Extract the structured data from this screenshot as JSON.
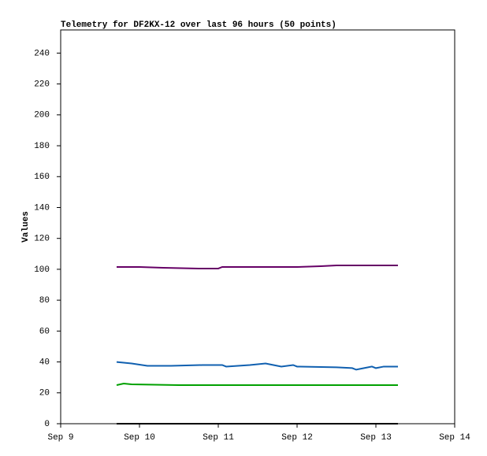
{
  "chart_data": {
    "type": "line",
    "title": "Telemetry for DF2KX-12 over last 96 hours (50 points)",
    "y_label": "Values",
    "xlim": [
      9,
      14
    ],
    "xticks": [
      {
        "value": 9,
        "label": "Sep 9"
      },
      {
        "value": 10,
        "label": "Sep 10"
      },
      {
        "value": 11,
        "label": "Sep 11"
      },
      {
        "value": 12,
        "label": "Sep 12"
      },
      {
        "value": 13,
        "label": "Sep 13"
      },
      {
        "value": 14,
        "label": "Sep 14"
      }
    ],
    "ylim": [
      0,
      255
    ],
    "yticks": [
      0,
      20,
      40,
      60,
      80,
      100,
      120,
      140,
      160,
      180,
      200,
      220,
      240
    ],
    "series": [
      {
        "color": "#660066",
        "x": [
          9.71,
          10.0,
          10.3,
          10.75,
          11.0,
          11.05,
          11.5,
          12.0,
          12.3,
          12.5,
          13.0,
          13.28
        ],
        "values": [
          101.5,
          101.5,
          101,
          100.5,
          100.5,
          101.5,
          101.5,
          101.5,
          102,
          102.5,
          102.5,
          102.5
        ]
      },
      {
        "color": "#1060b0",
        "x": [
          9.71,
          9.9,
          10.1,
          10.4,
          10.8,
          11.05,
          11.1,
          11.4,
          11.6,
          11.7,
          11.8,
          11.95,
          12.0,
          12.5,
          12.7,
          12.75,
          12.85,
          12.95,
          13.0,
          13.1,
          13.28
        ],
        "values": [
          40,
          39,
          37.5,
          37.5,
          38,
          38,
          37,
          38,
          39,
          38,
          37,
          38,
          37,
          36.5,
          36,
          35,
          36,
          37,
          36,
          37,
          37
        ]
      },
      {
        "color": "#00a000",
        "x": [
          9.71,
          9.8,
          9.9,
          10.5,
          11.5,
          12.5,
          13.28
        ],
        "values": [
          25,
          26,
          25.5,
          25,
          25,
          25,
          25
        ]
      },
      {
        "color": "#000000",
        "x": [
          9.71,
          10.5,
          11.5,
          12.5,
          13.28
        ],
        "values": [
          0,
          0,
          0,
          0,
          0
        ]
      }
    ]
  }
}
